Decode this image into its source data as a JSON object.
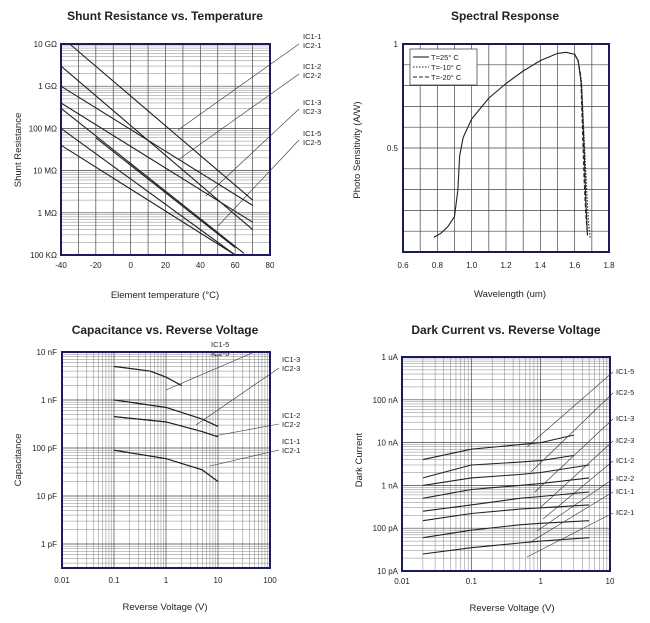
{
  "chart_data": [
    {
      "type": "line",
      "title": "Shunt Resistance vs. Temperature",
      "xlabel": "Element temperature (°C)",
      "ylabel": "Shunt Resistance",
      "x_ticks": [
        "-40",
        "-20",
        "0",
        "20",
        "40",
        "60",
        "80"
      ],
      "y_ticks": [
        "100 KΩ",
        "1 MΩ",
        "10 MΩ",
        "100 MΩ",
        "1 GΩ",
        "10 GΩ"
      ],
      "xlim": [
        -40,
        80
      ],
      "ylim_ohm": [
        100000,
        10000000000
      ],
      "y_scale": "log",
      "series": [
        {
          "name": "IC1-1",
          "x": [
            -35,
            70
          ],
          "y": [
            10000000000,
            2000000
          ]
        },
        {
          "name": "IC2-1",
          "x": [
            -40,
            70
          ],
          "y": [
            3000000000,
            400000
          ]
        },
        {
          "name": "IC1-2",
          "x": [
            -40,
            70
          ],
          "y": [
            1000000000,
            1500000
          ]
        },
        {
          "name": "IC2-2",
          "x": [
            -40,
            70
          ],
          "y": [
            400000000,
            600000
          ]
        },
        {
          "name": "IC1-3",
          "x": [
            -40,
            65
          ],
          "y": [
            300000000,
            110000
          ]
        },
        {
          "name": "IC2-3",
          "x": [
            -40,
            60
          ],
          "y": [
            100000000,
            100000
          ]
        },
        {
          "name": "IC1-5",
          "x": [
            -20,
            60
          ],
          "y": [
            60000000,
            150000
          ]
        },
        {
          "name": "IC2-5",
          "x": [
            -40,
            60
          ],
          "y": [
            40000000,
            100000
          ]
        }
      ]
    },
    {
      "type": "line",
      "title": "Spectral Response",
      "xlabel": "Wavelength (um)",
      "ylabel": "Photo Sensitivity (A/W)",
      "x_ticks": [
        "0.6",
        "0.8",
        "1.0",
        "1.2",
        "1.4",
        "1.6",
        "1.8"
      ],
      "y_ticks": [
        "0.5",
        "1"
      ],
      "xlim": [
        0.6,
        1.8
      ],
      "ylim": [
        0,
        1
      ],
      "legend_position": "top-left",
      "series": [
        {
          "name": "T=25° C",
          "style": "solid",
          "x": [
            0.78,
            0.82,
            0.86,
            0.9,
            0.92,
            0.93,
            0.95,
            1.0,
            1.1,
            1.2,
            1.3,
            1.4,
            1.5,
            1.55,
            1.6,
            1.62,
            1.64,
            1.655,
            1.665,
            1.675
          ],
          "y": [
            0.07,
            0.09,
            0.12,
            0.17,
            0.3,
            0.46,
            0.55,
            0.64,
            0.74,
            0.81,
            0.87,
            0.92,
            0.955,
            0.96,
            0.95,
            0.92,
            0.8,
            0.5,
            0.25,
            0.08
          ]
        },
        {
          "name": "T=-10° C",
          "style": "dotted",
          "x": [
            1.6,
            1.62,
            1.64,
            1.655,
            1.67,
            1.68,
            1.69
          ],
          "y": [
            0.95,
            0.92,
            0.82,
            0.55,
            0.3,
            0.15,
            0.07
          ]
        },
        {
          "name": "T=-20° C",
          "style": "dashed",
          "x": [
            1.6,
            1.62,
            1.635,
            1.645,
            1.655,
            1.665,
            1.675
          ],
          "y": [
            0.95,
            0.92,
            0.85,
            0.6,
            0.35,
            0.18,
            0.08
          ]
        }
      ]
    },
    {
      "type": "line",
      "title": "Capacitance vs. Reverse Voltage",
      "xlabel": "Reverse Voltage (V)",
      "ylabel": "Capacitance",
      "x_ticks": [
        "0.01",
        "0.1",
        "1",
        "10",
        "100"
      ],
      "y_ticks": [
        "1 pF",
        "10 pF",
        "100 pF",
        "1 nF",
        "10 nF"
      ],
      "x_scale": "log",
      "y_scale": "log",
      "series": [
        {
          "name": "IC1-5",
          "x": [
            0.1,
            0.5,
            1,
            2
          ],
          "y": [
            5000,
            4000,
            3000,
            2000
          ]
        },
        {
          "name": "IC2-5",
          "x": [
            0.1,
            0.5,
            1,
            2
          ],
          "y": [
            5000,
            4000,
            3000,
            2000
          ]
        },
        {
          "name": "IC1-3",
          "x": [
            0.1,
            1,
            5,
            10
          ],
          "y": [
            1000,
            700,
            400,
            280
          ]
        },
        {
          "name": "IC2-3",
          "x": [
            0.1,
            1,
            5,
            10
          ],
          "y": [
            1000,
            700,
            400,
            280
          ]
        },
        {
          "name": "IC1-2",
          "x": [
            0.1,
            1,
            5,
            10
          ],
          "y": [
            450,
            350,
            220,
            170
          ]
        },
        {
          "name": "IC2-2",
          "x": [
            0.1,
            1,
            5,
            10
          ],
          "y": [
            450,
            350,
            220,
            170
          ]
        },
        {
          "name": "IC1-1",
          "x": [
            0.1,
            1,
            5,
            10
          ],
          "y": [
            90,
            60,
            35,
            20
          ]
        },
        {
          "name": "IC2-1",
          "x": [
            0.1,
            1,
            5,
            10
          ],
          "y": [
            90,
            60,
            35,
            20
          ]
        }
      ]
    },
    {
      "type": "line",
      "title": "Dark Current vs. Reverse Voltage",
      "xlabel": "Reverse Voltage (V)",
      "ylabel": "Dark Current",
      "x_ticks": [
        "0.01",
        "0.1",
        "1",
        "10"
      ],
      "y_ticks": [
        "10 pA",
        "100 pA",
        "1 nA",
        "10 nA",
        "100 nA",
        "1 uA"
      ],
      "x_scale": "log",
      "y_scale": "log",
      "series": [
        {
          "name": "IC1-5",
          "x": [
            0.02,
            0.1,
            0.5,
            1,
            3
          ],
          "y": [
            4000,
            7000,
            9000,
            10000,
            15000
          ]
        },
        {
          "name": "IC2-5",
          "x": [
            0.02,
            0.1,
            0.5,
            1,
            3
          ],
          "y": [
            1500,
            3000,
            3500,
            3800,
            5000
          ]
        },
        {
          "name": "IC1-3",
          "x": [
            0.02,
            0.1,
            0.5,
            1,
            5
          ],
          "y": [
            1000,
            1500,
            1800,
            2000,
            3000
          ]
        },
        {
          "name": "IC2-3",
          "x": [
            0.02,
            0.1,
            0.5,
            1,
            5
          ],
          "y": [
            500,
            800,
            1000,
            1100,
            1500
          ]
        },
        {
          "name": "IC1-2",
          "x": [
            0.02,
            0.1,
            0.5,
            1,
            5
          ],
          "y": [
            250,
            350,
            500,
            550,
            700
          ]
        },
        {
          "name": "IC2-2",
          "x": [
            0.02,
            0.1,
            0.5,
            1,
            5
          ],
          "y": [
            150,
            220,
            280,
            300,
            350
          ]
        },
        {
          "name": "IC1-1",
          "x": [
            0.02,
            0.1,
            0.5,
            1,
            5
          ],
          "y": [
            60,
            90,
            120,
            130,
            150
          ]
        },
        {
          "name": "IC2-1",
          "x": [
            0.02,
            0.1,
            0.5,
            1,
            5
          ],
          "y": [
            25,
            35,
            45,
            50,
            60
          ]
        }
      ]
    }
  ]
}
